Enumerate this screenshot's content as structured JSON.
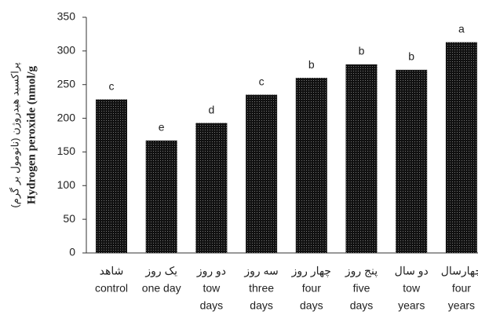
{
  "chart_data": {
    "type": "bar",
    "ylabel": [
      "پراکسید هیدروژن (نانومول بر گرم)",
      "Hydrogen peroxide (nmol/g"
    ],
    "categories": [
      [
        "شاهد",
        "control"
      ],
      [
        "یک روز",
        "one day"
      ],
      [
        "دو روز",
        "tow",
        "days"
      ],
      [
        "سه روز",
        "three",
        "days"
      ],
      [
        "چهار روز",
        "four",
        "days"
      ],
      [
        "پنج روز",
        "five",
        "days"
      ],
      [
        "دو سال",
        "tow",
        "years"
      ],
      [
        "چهارسال",
        "four",
        "years"
      ]
    ],
    "values": [
      228,
      167,
      193,
      235,
      260,
      280,
      272,
      313
    ],
    "letters": [
      "c",
      "e",
      "d",
      "c",
      "b",
      "b",
      "b",
      "a"
    ],
    "color": "#111111",
    "ylim": [
      0,
      350
    ],
    "yticks": [
      0,
      50,
      100,
      150,
      200,
      250,
      300,
      350
    ]
  }
}
